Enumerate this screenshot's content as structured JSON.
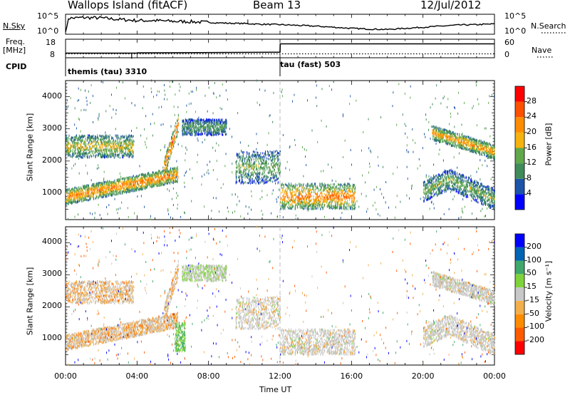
{
  "header": {
    "station": "Wallops Island (fitACF)",
    "beam": "Beam 13",
    "date": "12/Jul/2012"
  },
  "panels": {
    "nsky": {
      "label": "N.Sky",
      "ticks": [
        "10^5",
        "10^0"
      ],
      "right_label": "N.Search"
    },
    "freq": {
      "label_line1": "Freq.",
      "label_line2": "[MHz]",
      "ticks_left": [
        "18",
        "8"
      ],
      "ticks_right": [
        "60",
        "0"
      ],
      "right_label": "Nave"
    },
    "cpid": {
      "label": "CPID",
      "modes": [
        "themis (tau) 3310",
        "tau (fast) 503"
      ]
    }
  },
  "colors": {
    "power": [
      "#0000ff",
      "#1c54a8",
      "#3f8b5a",
      "#5fa84c",
      "#f6b20e",
      "#ff8c00",
      "#ff5000",
      "#ff0000"
    ],
    "velocity": [
      "#ff0000",
      "#ff5a00",
      "#ff8c00",
      "#f2b04c",
      "#c8c8c8",
      "#7fd33a",
      "#3fa86a",
      "#0064b4",
      "#0000ff"
    ]
  },
  "chart_data": [
    {
      "type": "line",
      "title": "N.Sky",
      "x": [
        0,
        1,
        2,
        3,
        4,
        5,
        6,
        7,
        8,
        9,
        10,
        11,
        12,
        13,
        14,
        15,
        16,
        17,
        18,
        19,
        20,
        21,
        22,
        23,
        24
      ],
      "series": [
        {
          "name": "N.Sky",
          "values": [
            3.9,
            4.1,
            4.0,
            3.6,
            3.3,
            3.3,
            3.1,
            3.0,
            2.8,
            2.6,
            2.5,
            2.3,
            2.2,
            2.0,
            1.8,
            1.5,
            1.2,
            1.0,
            0.9,
            1.2,
            1.5,
            1.8,
            2.1,
            2.2,
            2.4
          ]
        }
      ]
    },
    {
      "type": "line",
      "title": "Freq.",
      "x": [
        0,
        4,
        4.01,
        12,
        12.01,
        24
      ],
      "series": [
        {
          "name": "Freq.",
          "values": [
            10.5,
            10.5,
            10.6,
            11,
            15.5,
            15.5
          ]
        }
      ]
    },
    {
      "type": "heatmap",
      "title": "Power",
      "xlabel": "Time UT",
      "ylabel": "Slant Range [km]",
      "xlim": [
        0,
        24
      ],
      "ylim": [
        180,
        4500
      ],
      "x_ticks": [
        "00:00",
        "04:00",
        "08:00",
        "12:00",
        "16:00",
        "20:00",
        "00:00"
      ],
      "y_ticks": [
        "1000",
        "2000",
        "3000",
        "4000"
      ],
      "colorbar": {
        "label": "Power [dB]",
        "ticks": [
          "4",
          "8",
          "12",
          "16",
          "20",
          "24",
          "28"
        ],
        "range": [
          0,
          32
        ]
      },
      "features": [
        {
          "t": [
            0,
            6.3
          ],
          "range": [
            800,
            1600
          ],
          "peak_db": 24
        },
        {
          "t": [
            0,
            3.8
          ],
          "range": [
            2100,
            2800
          ],
          "peak_db": 18
        },
        {
          "t": [
            5.5,
            6.3
          ],
          "range": [
            2400,
            3300
          ],
          "peak_db": 28
        },
        {
          "t": [
            6.5,
            9.0
          ],
          "range": [
            2800,
            3300
          ],
          "peak_db": 12
        },
        {
          "t": [
            9.5,
            12
          ],
          "range": [
            1300,
            2300
          ],
          "peak_db": 14
        },
        {
          "t": [
            12,
            16.2
          ],
          "range": [
            500,
            1300
          ],
          "peak_db": 24
        },
        {
          "t": [
            20.5,
            24
          ],
          "range": [
            2200,
            2900
          ],
          "peak_db": 22
        },
        {
          "t": [
            20,
            24
          ],
          "range": [
            700,
            1600
          ],
          "peak_db": 14
        }
      ]
    },
    {
      "type": "heatmap",
      "title": "Velocity",
      "xlabel": "Time UT",
      "ylabel": "Slant Range [km]",
      "xlim": [
        0,
        24
      ],
      "ylim": [
        180,
        4500
      ],
      "x_ticks": [
        "00:00",
        "04:00",
        "08:00",
        "12:00",
        "16:00",
        "20:00",
        "00:00"
      ],
      "y_ticks": [
        "1000",
        "2000",
        "3000",
        "4000"
      ],
      "colorbar": {
        "label": "Velocity [m s⁻¹]",
        "ticks": [
          "200",
          "100",
          "50",
          "15",
          "-15",
          "-50",
          "-100",
          "-200"
        ],
        "range": [
          -250,
          250
        ]
      }
    }
  ],
  "time_label": "Time UT"
}
